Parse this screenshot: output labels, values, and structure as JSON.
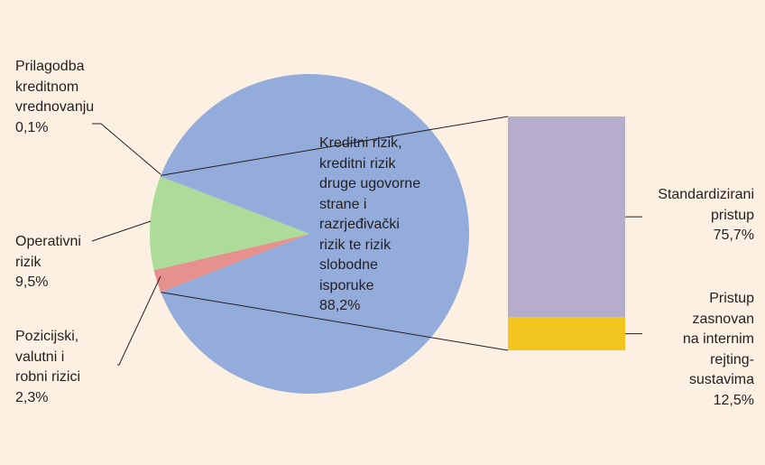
{
  "chart_data": {
    "type": "bar-of-pie",
    "pie": {
      "slices": [
        {
          "key": "credit",
          "lines": [
            "Kreditni rizik,",
            "kreditni rizik",
            "druge ugovorne",
            "strane i",
            "razrjeđivački",
            "rizik te rizik",
            "slobodne",
            "isporuke"
          ],
          "value_label": "88,2%",
          "value": 88.2
        },
        {
          "key": "cva",
          "lines": [
            "Prilagodba",
            "kreditnom",
            "vrednovanju"
          ],
          "value_label": "0,1%",
          "value": 0.1
        },
        {
          "key": "operational",
          "lines": [
            "Operativni",
            "rizik"
          ],
          "value_label": "9,5%",
          "value": 9.5
        },
        {
          "key": "position",
          "lines": [
            "Pozicijski,",
            "valutni i",
            "robni rizici"
          ],
          "value_label": "2,3%",
          "value": 2.3
        }
      ]
    },
    "bar": {
      "segments": [
        {
          "key": "standardised",
          "lines": [
            "Standardizirani",
            "pristup"
          ],
          "value_label": "75,7%",
          "value": 75.7
        },
        {
          "key": "irb",
          "lines": [
            "Pristup",
            "zasnovan",
            "na internim",
            "rejting-",
            "sustavima"
          ],
          "value_label": "12,5%",
          "value": 12.5
        }
      ]
    },
    "colors": {
      "background": "#fcf0e2",
      "credit": "#93acdb",
      "cva": "#93acdb",
      "operational": "#addb9a",
      "position": "#e6918d",
      "standardised": "#b6adcc",
      "irb": "#f2c51e",
      "text": "#231f20",
      "leader": "#231f20"
    }
  }
}
